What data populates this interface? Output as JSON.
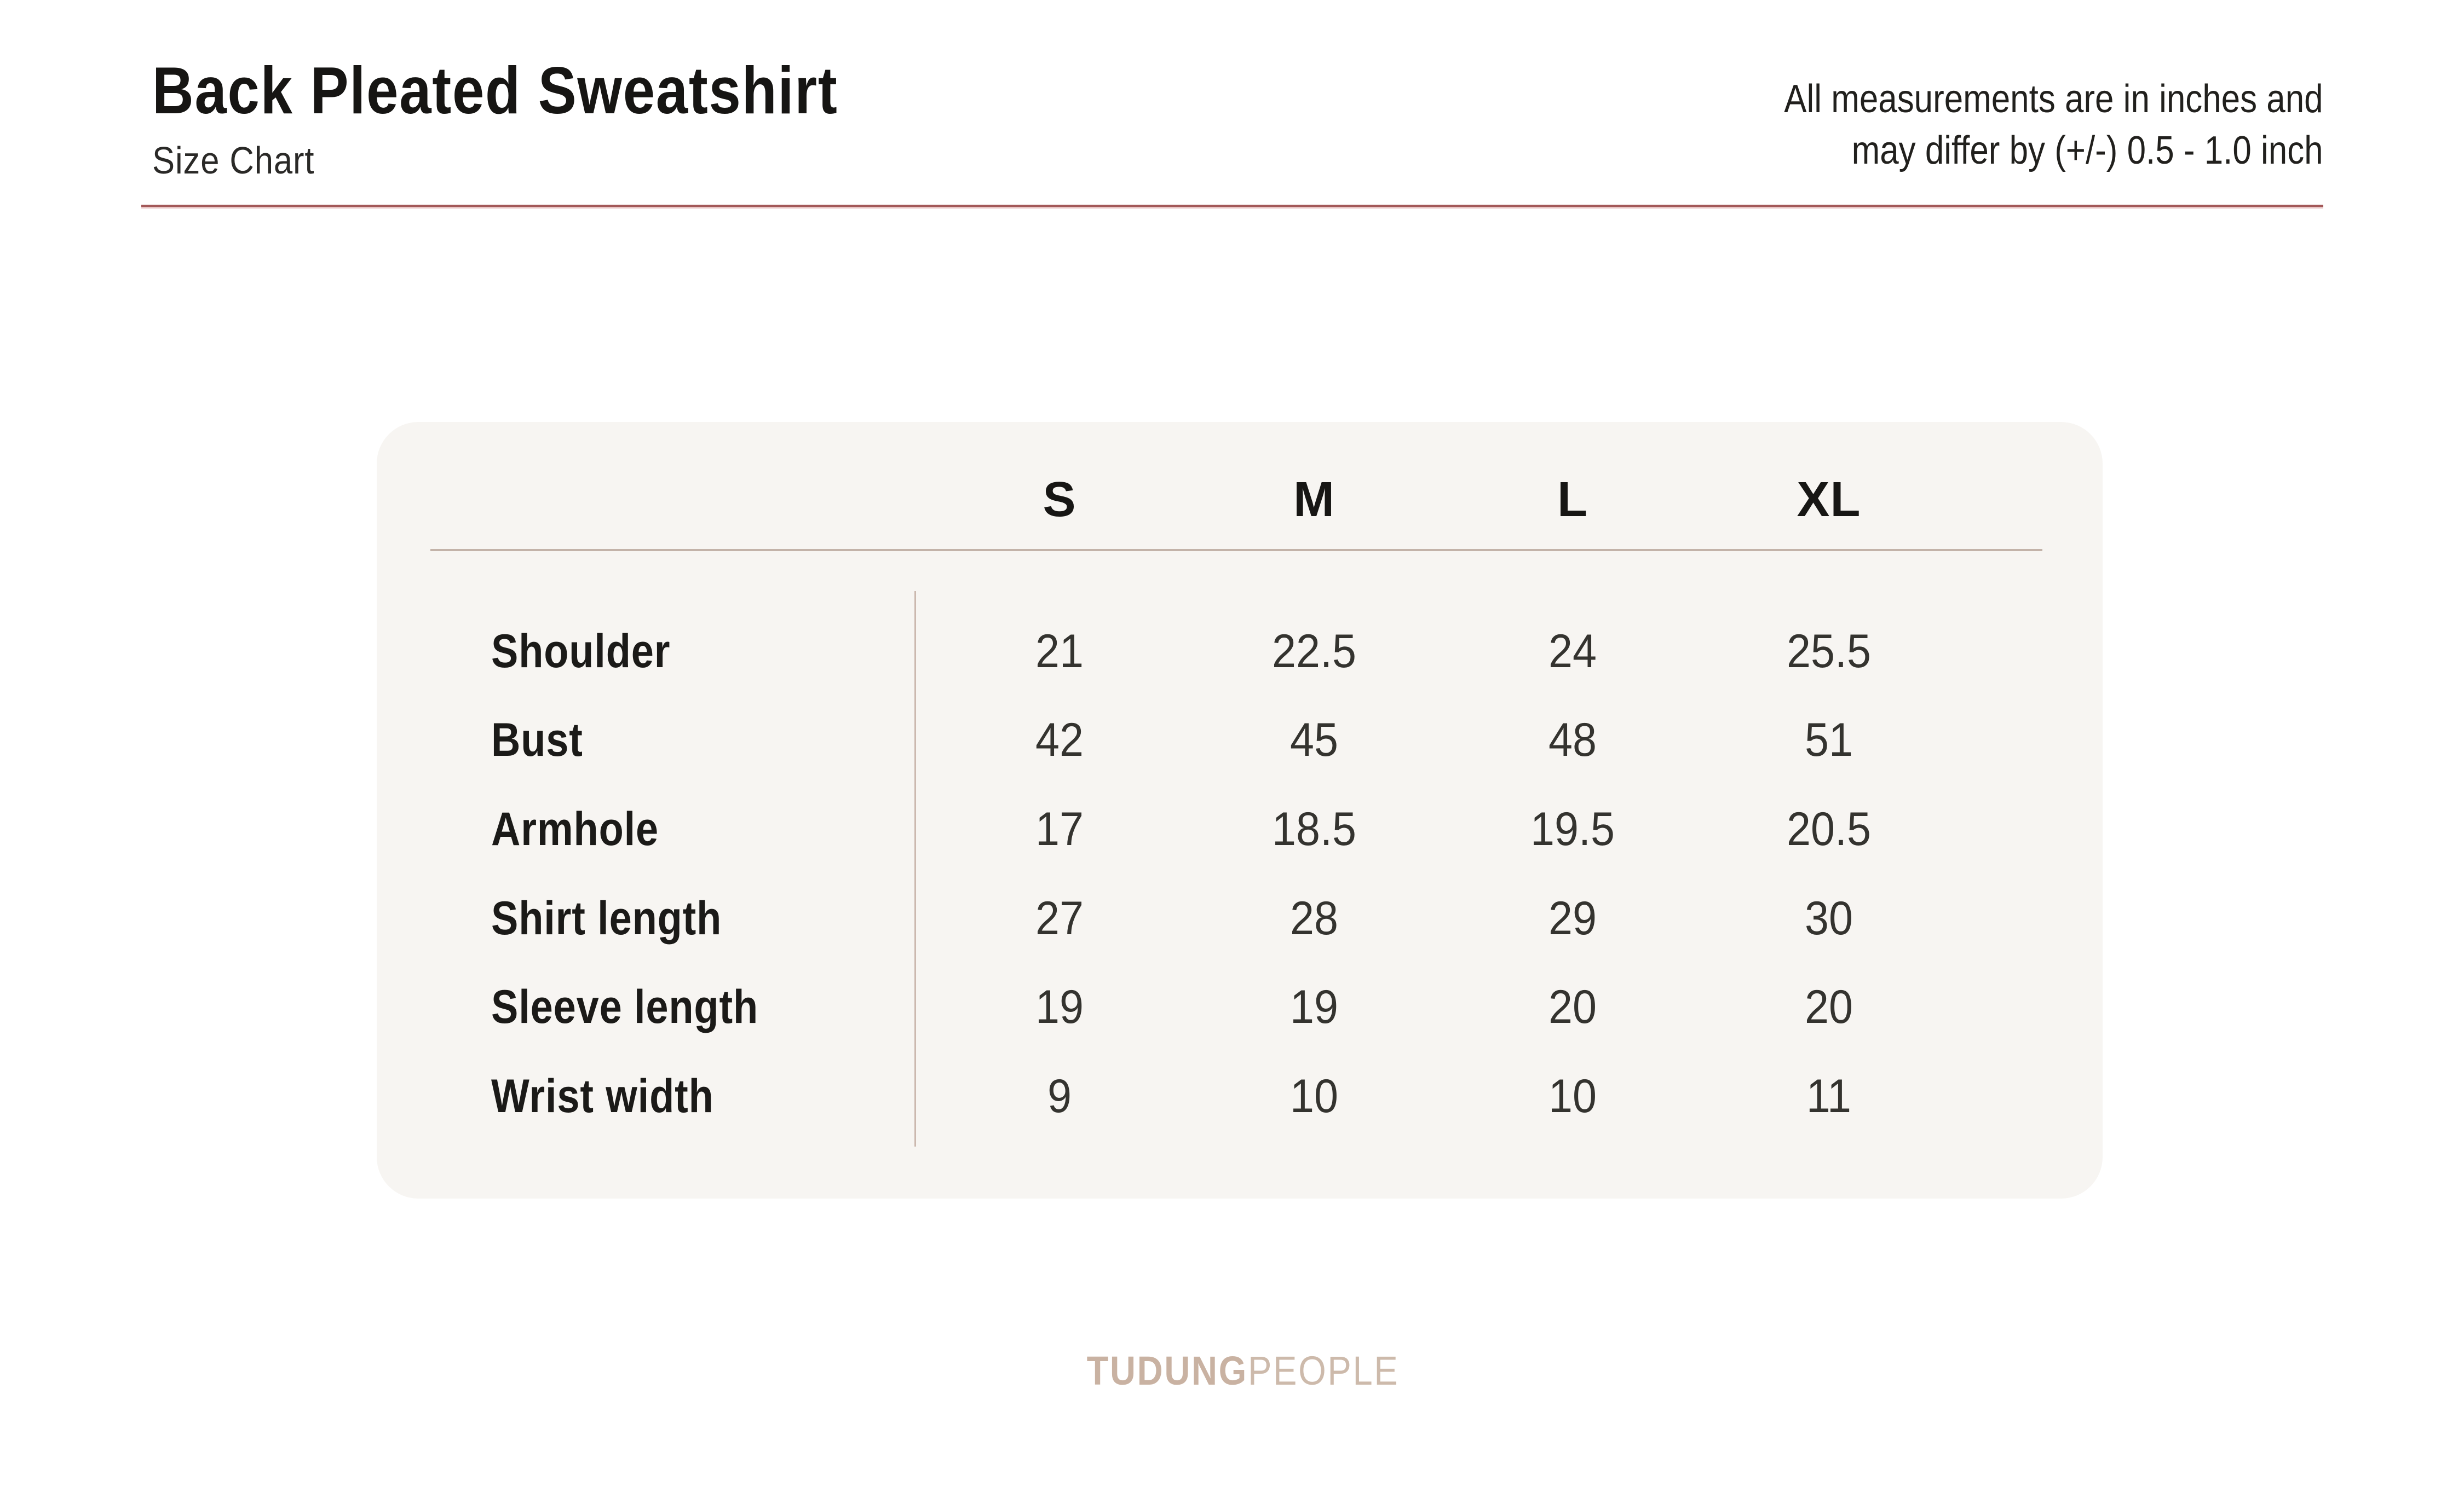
{
  "page": {
    "title": "Back Pleated Sweatshirt",
    "subtitle": "Size Chart",
    "note_line1": "All measurements are in inches and",
    "note_line2": "may differ by (+/-) 0.5 - 1.0 inch"
  },
  "chart_data": {
    "type": "table",
    "title": "Back Pleated Sweatshirt",
    "subtitle": "Size Chart",
    "columns": [
      "S",
      "M",
      "L",
      "XL"
    ],
    "rows": [
      {
        "label": "Shoulder",
        "values": [
          "21",
          "22.5",
          "24",
          "25.5"
        ]
      },
      {
        "label": "Bust",
        "values": [
          "42",
          "45",
          "48",
          "51"
        ]
      },
      {
        "label": "Armhole",
        "values": [
          "17",
          "18.5",
          "19.5",
          "20.5"
        ]
      },
      {
        "label": "Shirt length",
        "values": [
          "27",
          "28",
          "29",
          "30"
        ]
      },
      {
        "label": "Sleeve length",
        "values": [
          "19",
          "19",
          "20",
          "20"
        ]
      },
      {
        "label": "Wrist width",
        "values": [
          "9",
          "10",
          "10",
          "11"
        ]
      }
    ]
  },
  "footer": {
    "brand_bold": "TUDUNG",
    "brand_light": "PEOPLE"
  },
  "colors": {
    "accent_rule": "#a35959",
    "table_rule": "#c3b3a9",
    "card_background": "#f7f5f2",
    "brand": "#c9b2a2",
    "text": "#1b1a18"
  }
}
